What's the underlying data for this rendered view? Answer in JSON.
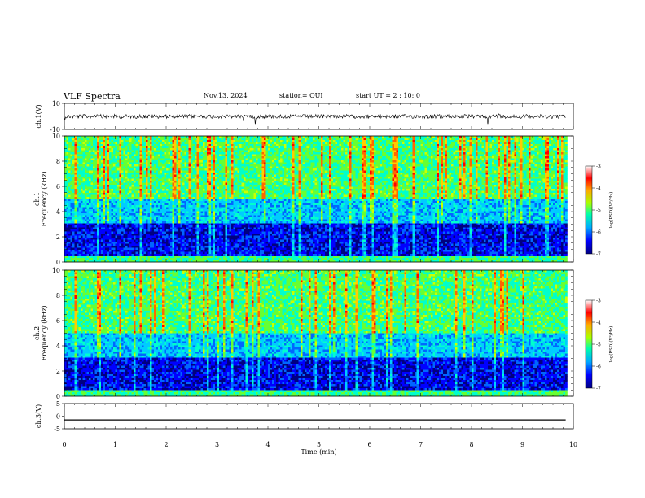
{
  "header": {
    "title": "VLF Spectra",
    "date": "Nov.13, 2024",
    "station": "station= OUI",
    "start": "start  UT =  2 : 10: 0"
  },
  "chart_data": [
    {
      "type": "line",
      "id": "ch1-waveform",
      "ylabel": "ch.1(V)",
      "ylim": [
        -10,
        10
      ],
      "yticks": [
        10,
        -10
      ],
      "xlim": [
        0,
        10
      ],
      "series": [
        {
          "x": [
            0,
            9.85
          ],
          "values": [
            0,
            0
          ]
        }
      ]
    },
    {
      "type": "heatmap",
      "id": "ch1-spectrogram",
      "ylabel": "ch.1\nFrequency (kHz)",
      "ylim": [
        0,
        10
      ],
      "yticks": [
        0,
        2,
        4,
        6,
        8,
        10
      ],
      "xlim": [
        0,
        10
      ],
      "data_xmax": 9.85,
      "colorbar": {
        "label": "log(PSD)(V²/Hz)",
        "range": [
          -7,
          -3
        ],
        "ticks": [
          -3,
          -4,
          -5,
          -6,
          -7
        ]
      }
    },
    {
      "type": "heatmap",
      "id": "ch2-spectrogram",
      "ylabel": "ch.2\nFrequency (kHz)",
      "ylim": [
        0,
        10
      ],
      "yticks": [
        0,
        2,
        4,
        6,
        8,
        10
      ],
      "xlim": [
        0,
        10
      ],
      "data_xmax": 9.85,
      "colorbar": {
        "label": "log(PSD)(V²/Hz)",
        "range": [
          -7,
          -3
        ],
        "ticks": [
          -3,
          -4,
          -5,
          -6,
          -7
        ]
      }
    },
    {
      "type": "line",
      "id": "ch3-waveform",
      "ylabel": "ch.3(V)",
      "ylim": [
        -5,
        5
      ],
      "yticks": [
        5,
        0,
        -5
      ],
      "xlim": [
        0,
        10
      ],
      "series": [
        {
          "x": [
            0,
            9.85
          ],
          "values": [
            -1.5,
            -1.5
          ]
        }
      ]
    }
  ],
  "xaxis": {
    "label": "Time (min)",
    "ticks": [
      0,
      1,
      2,
      3,
      4,
      5,
      6,
      7,
      8,
      9,
      10
    ]
  },
  "colors": {
    "colormap": [
      "#0000a0",
      "#0040ff",
      "#00c8ff",
      "#00ff80",
      "#c8ff00",
      "#ffc800",
      "#ff0000",
      "#ffffff"
    ]
  }
}
